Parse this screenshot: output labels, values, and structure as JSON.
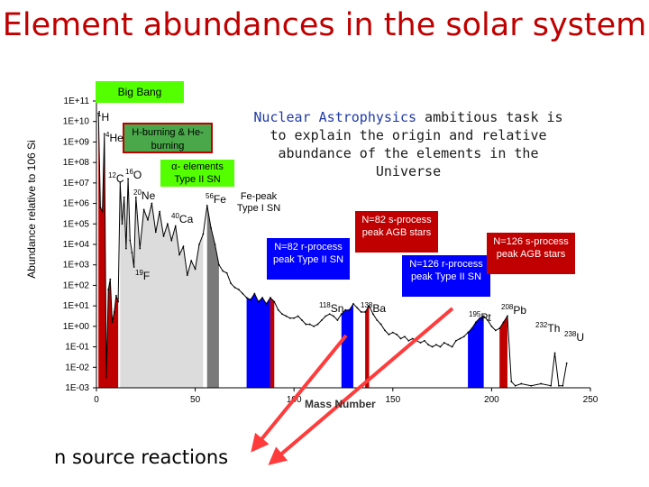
{
  "title": "Element abundances in the solar system",
  "chart_data": {
    "type": "line",
    "xlabel": "Mass Number",
    "ylabel": "Abundance relative to 106 Si",
    "xlim": [
      0,
      250
    ],
    "ylim_log10": [
      -3,
      11
    ],
    "x_ticks": [
      "0",
      "50",
      "100",
      "150",
      "200",
      "250"
    ],
    "y_ticks": [
      "1E-03",
      "1E-02",
      "1E-01",
      "1E+00",
      "1E+01",
      "1E+02",
      "1E+03",
      "1E+04",
      "1E+05",
      "1E+06",
      "1E+07",
      "1E+08",
      "1E+09",
      "1E+10",
      "1E+11"
    ],
    "series": [
      {
        "x": [
          1,
          2,
          3,
          4,
          5,
          6,
          7,
          8,
          9,
          10,
          11,
          12,
          13,
          14,
          15,
          16,
          17,
          18,
          19,
          20,
          22,
          24,
          26,
          28,
          30,
          32,
          34,
          36,
          38,
          40,
          42,
          44,
          46,
          48,
          50,
          52,
          54,
          56,
          58,
          60,
          62,
          64,
          66,
          68,
          70,
          72,
          74,
          76,
          78,
          80,
          82,
          84,
          86,
          88,
          90,
          92,
          94,
          96,
          98,
          100,
          102,
          104,
          106,
          108,
          110,
          112,
          114,
          116,
          118,
          120,
          122,
          124,
          126,
          128,
          130,
          132,
          134,
          136,
          138,
          140,
          142,
          144,
          146,
          148,
          150,
          152,
          154,
          156,
          158,
          160,
          162,
          164,
          166,
          168,
          170,
          172,
          174,
          176,
          178,
          180,
          182,
          184,
          186,
          188,
          190,
          192,
          194,
          196,
          198,
          200,
          202,
          204,
          206,
          208,
          210,
          212,
          215,
          220,
          225,
          230,
          232,
          234,
          236,
          238
        ],
        "log10_values": [
          10.4,
          5.8,
          5.6,
          9.4,
          -2.5,
          1.8,
          2.3,
          0.2,
          0.7,
          1.5,
          1.2,
          7.0,
          5.0,
          6.3,
          3.8,
          7.2,
          4.2,
          3.6,
          2.9,
          6.3,
          3.8,
          5.7,
          5.2,
          6.0,
          4.6,
          5.6,
          4.4,
          5.0,
          4.2,
          4.9,
          3.5,
          3.9,
          2.5,
          3.2,
          2.8,
          4.0,
          4.5,
          5.9,
          4.8,
          4.0,
          3.0,
          2.7,
          2.6,
          2.1,
          1.9,
          1.8,
          1.6,
          1.4,
          1.3,
          1.6,
          1.2,
          1.4,
          1.1,
          1.4,
          1.2,
          0.8,
          0.6,
          0.5,
          0.4,
          0.4,
          0.5,
          0.3,
          0.1,
          0.1,
          0.0,
          0.1,
          0.3,
          0.5,
          0.6,
          0.5,
          0.3,
          0.6,
          0.8,
          0.8,
          1.1,
          0.9,
          0.7,
          0.7,
          1.0,
          0.6,
          0.3,
          0.1,
          -0.2,
          -0.4,
          -0.3,
          -0.4,
          -0.6,
          -0.5,
          -0.7,
          -0.6,
          -0.7,
          -0.8,
          -0.7,
          -0.9,
          -1.0,
          -0.9,
          -1.0,
          -0.8,
          -0.9,
          -1.0,
          -0.7,
          -0.6,
          -0.5,
          -0.3,
          -0.1,
          0.2,
          0.4,
          0.5,
          0.3,
          0.0,
          -0.2,
          -0.1,
          0.2,
          0.5,
          -2.7,
          -2.9,
          -2.8,
          -2.9,
          -2.8,
          -2.9,
          -1.3,
          -2.9,
          -2.9,
          -1.8
        ]
      }
    ],
    "shaded_regions": [
      {
        "x": [
          1,
          11
        ],
        "color": "#c00000"
      },
      {
        "x": [
          12,
          55
        ],
        "color": "#dcdcdc"
      },
      {
        "x": [
          56,
          62
        ],
        "color": "#7a7a7a"
      },
      {
        "x": [
          76,
          88
        ],
        "color": "#0000ff"
      },
      {
        "x": [
          88,
          91
        ],
        "color": "#c00000"
      },
      {
        "x": [
          124,
          131
        ],
        "color": "#0000ff"
      },
      {
        "x": [
          136,
          139
        ],
        "color": "#c00000"
      },
      {
        "x": [
          188,
          196
        ],
        "color": "#0000ff"
      },
      {
        "x": [
          204,
          209
        ],
        "color": "#c00000"
      }
    ],
    "nuclide_labels": [
      {
        "mass": "1",
        "symbol": "H"
      },
      {
        "mass": "4",
        "symbol": "He"
      },
      {
        "mass": "12",
        "symbol": "C"
      },
      {
        "mass": "16",
        "symbol": "O"
      },
      {
        "mass": "20",
        "symbol": "Ne"
      },
      {
        "mass": "40",
        "symbol": "Ca"
      },
      {
        "mass": "56",
        "symbol": "Fe"
      },
      {
        "mass": "19",
        "symbol": "F"
      },
      {
        "mass": "118",
        "symbol": "Sn"
      },
      {
        "mass": "138",
        "symbol": "Ba"
      },
      {
        "mass": "195",
        "symbol": "Pt"
      },
      {
        "mass": "208",
        "symbol": "Pb"
      },
      {
        "mass": "232",
        "symbol": "Th"
      },
      {
        "mass": "238",
        "symbol": "U"
      }
    ],
    "annotations": {
      "big_bang": "Big Bang",
      "h_burning": "H-burning & He-burning",
      "alpha": "α- elements Type II SN",
      "fe_peak": "Fe-peak Type I SN",
      "n82_r": "N=82 r-process peak Type II SN",
      "n82_s": "N=82 s-process peak AGB stars",
      "n126_r": "N=126 r-process peak Type II SN",
      "n126_s": "N=126 s-process peak AGB stars"
    },
    "colors": {
      "red": "#c00000",
      "blue": "#0000ff",
      "green": "#4aa84a",
      "lime": "#54ff00",
      "gray": "#7a7a7a",
      "light": "#dcdcdc"
    }
  },
  "note": {
    "part1": "Nuclear Astrophysics",
    "part2": " ambitious task is to explain the origin and relative abundance of the elements in the Universe"
  },
  "bottom_label": "n source reactions"
}
